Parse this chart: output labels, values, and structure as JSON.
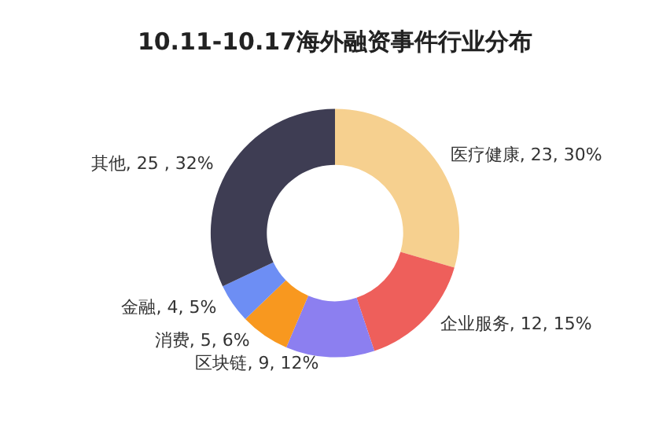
{
  "chart_data": {
    "type": "donut",
    "title": "10.11-10.17海外融资事件行业分布",
    "categories": [
      "医疗健康",
      "企业服务",
      "区块链",
      "消费",
      "金融",
      "其他"
    ],
    "values": [
      23,
      12,
      9,
      5,
      4,
      25
    ],
    "value_labels": [
      "23, 30%",
      "12, 15%",
      "9, 12%",
      "5, 6%",
      "4, 5%",
      "25 , 32%"
    ],
    "colors": [
      "#f6d08f",
      "#ee5f5b",
      "#8c7ff0",
      "#f8981f",
      "#6d8ef4",
      "#3e3d53"
    ],
    "legend": false
  }
}
